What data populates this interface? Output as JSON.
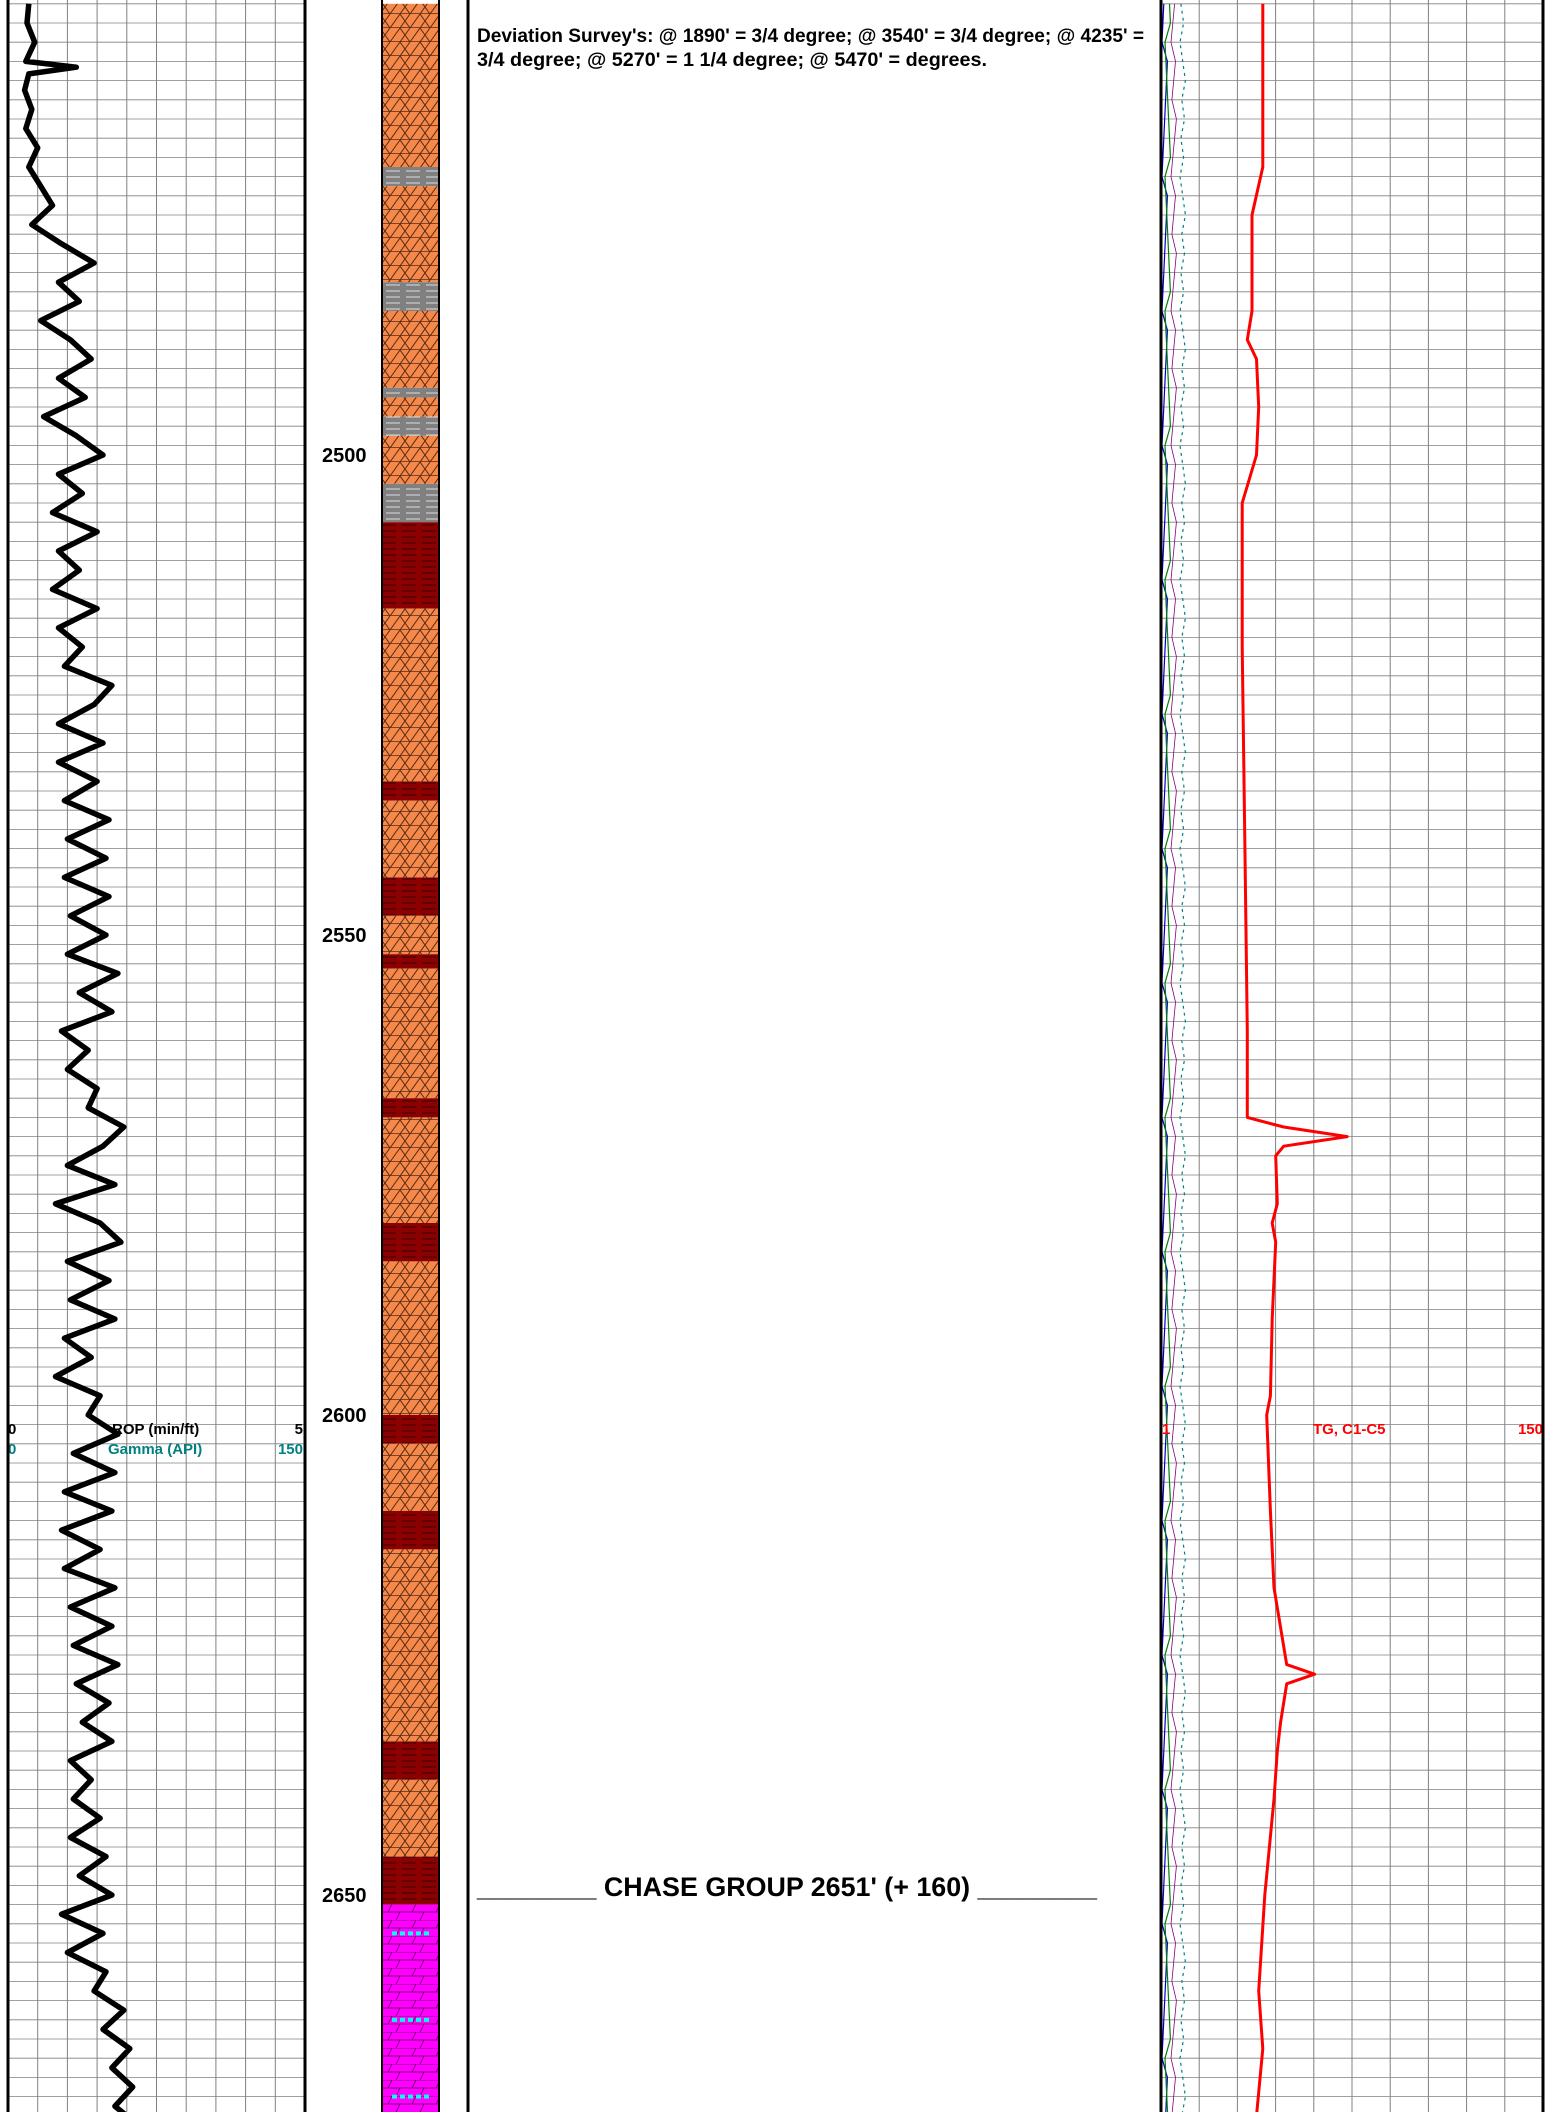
{
  "survey_note": {
    "line1": "Deviation Survey's: @ 1890' = 3/4 degree; @ 3540' = 3/4 degree; @ 4235' =",
    "line2": "3/4 degree; @ 5270' = 1 1/4 degree; @ 5470' =    degrees."
  },
  "formation_top": {
    "label": "________ CHASE GROUP 2651' (+ 160) ________",
    "depth": 2651
  },
  "depth_labels": [
    "2500",
    "2550",
    "2600",
    "2650"
  ],
  "left_track_header": {
    "rop_min": "0",
    "rop_label": "ROP (min/ft)",
    "rop_max": "5",
    "gamma_min": "0",
    "gamma_label": "Gamma (API)",
    "gamma_max": "150"
  },
  "right_track_header": {
    "gas_min": "1",
    "gas_label": "TG, C1-C5",
    "gas_max": "150"
  },
  "colors": {
    "rop": "#000000",
    "gamma": "#008080",
    "total_gas": "#ff0000",
    "limestone": "#ff00ff",
    "dolomite": "#f5894b",
    "red_shale": "#8b0000",
    "gray_shale": "#808080",
    "anhydrite_stringer": "#00ffff",
    "grid_minor": "#808080",
    "grid_major": "#000000"
  },
  "chart_data": {
    "type": "line",
    "depth_range": [
      2453,
      2673
    ],
    "depth_unit": "ft",
    "series": [
      {
        "name": "ROP (min/ft)",
        "scale": [
          0,
          5
        ],
        "points": [
          [
            2453,
            0.35
          ],
          [
            2455,
            0.32
          ],
          [
            2457,
            0.45
          ],
          [
            2459,
            0.3
          ],
          [
            2459.6,
            1.15
          ],
          [
            2460.3,
            0.35
          ],
          [
            2462,
            0.28
          ],
          [
            2464,
            0.4
          ],
          [
            2466,
            0.3
          ],
          [
            2468,
            0.5
          ],
          [
            2470,
            0.35
          ],
          [
            2472,
            0.55
          ],
          [
            2474,
            0.75
          ],
          [
            2476,
            0.4
          ],
          [
            2478,
            0.9
          ],
          [
            2480,
            1.45
          ],
          [
            2482,
            0.85
          ],
          [
            2484,
            1.2
          ],
          [
            2486,
            0.55
          ],
          [
            2488,
            1.05
          ],
          [
            2490,
            1.4
          ],
          [
            2492,
            0.85
          ],
          [
            2494,
            1.3
          ],
          [
            2496,
            0.6
          ],
          [
            2498,
            1.15
          ],
          [
            2500,
            1.6
          ],
          [
            2502,
            0.85
          ],
          [
            2504,
            1.25
          ],
          [
            2506,
            0.75
          ],
          [
            2508,
            1.5
          ],
          [
            2510,
            0.85
          ],
          [
            2512,
            1.2
          ],
          [
            2514,
            0.75
          ],
          [
            2516,
            1.5
          ],
          [
            2518,
            0.85
          ],
          [
            2520,
            1.25
          ],
          [
            2522,
            0.95
          ],
          [
            2524,
            1.75
          ],
          [
            2526,
            1.45
          ],
          [
            2528,
            0.85
          ],
          [
            2530,
            1.6
          ],
          [
            2532,
            0.85
          ],
          [
            2534,
            1.5
          ],
          [
            2536,
            0.95
          ],
          [
            2538,
            1.7
          ],
          [
            2540,
            1.0
          ],
          [
            2542,
            1.65
          ],
          [
            2544,
            0.95
          ],
          [
            2546,
            1.7
          ],
          [
            2548,
            1.05
          ],
          [
            2550,
            1.65
          ],
          [
            2552,
            1.0
          ],
          [
            2554,
            1.85
          ],
          [
            2556,
            1.2
          ],
          [
            2558,
            1.75
          ],
          [
            2560,
            0.9
          ],
          [
            2562,
            1.35
          ],
          [
            2564,
            1.0
          ],
          [
            2566,
            1.5
          ],
          [
            2568,
            1.35
          ],
          [
            2570,
            1.95
          ],
          [
            2572,
            1.6
          ],
          [
            2574,
            1.0
          ],
          [
            2576,
            1.8
          ],
          [
            2578,
            0.8
          ],
          [
            2580,
            1.55
          ],
          [
            2582,
            1.9
          ],
          [
            2584,
            1.0
          ],
          [
            2586,
            1.7
          ],
          [
            2588,
            1.05
          ],
          [
            2590,
            1.8
          ],
          [
            2592,
            0.95
          ],
          [
            2594,
            1.4
          ],
          [
            2596,
            0.8
          ],
          [
            2598,
            1.55
          ],
          [
            2600,
            1.35
          ],
          [
            2602,
            1.85
          ],
          [
            2604,
            1.1
          ],
          [
            2606,
            1.8
          ],
          [
            2608,
            0.95
          ],
          [
            2610,
            1.75
          ],
          [
            2612,
            0.9
          ],
          [
            2614,
            1.55
          ],
          [
            2616,
            0.95
          ],
          [
            2618,
            1.8
          ],
          [
            2620,
            1.05
          ],
          [
            2622,
            1.75
          ],
          [
            2624,
            1.1
          ],
          [
            2626,
            1.85
          ],
          [
            2628,
            1.15
          ],
          [
            2630,
            1.7
          ],
          [
            2632,
            1.25
          ],
          [
            2634,
            1.75
          ],
          [
            2636,
            1.05
          ],
          [
            2638,
            1.4
          ],
          [
            2640,
            1.1
          ],
          [
            2642,
            1.55
          ],
          [
            2644,
            1.05
          ],
          [
            2646,
            1.65
          ],
          [
            2648,
            1.2
          ],
          [
            2650,
            1.75
          ],
          [
            2652,
            0.9
          ],
          [
            2654,
            1.6
          ],
          [
            2656,
            1.0
          ],
          [
            2658,
            1.65
          ],
          [
            2660,
            1.45
          ],
          [
            2662,
            1.95
          ],
          [
            2664,
            1.6
          ],
          [
            2666,
            2.05
          ],
          [
            2668,
            1.75
          ],
          [
            2670,
            2.1
          ],
          [
            2672,
            1.8
          ],
          [
            2673,
            2.0
          ]
        ]
      },
      {
        "name": "Gamma (API)",
        "scale": [
          0,
          150
        ],
        "points": []
      },
      {
        "name": "TG, C1-C5",
        "scale": [
          1,
          150
        ],
        "points": [
          [
            2453,
            3.8
          ],
          [
            2470,
            3.8
          ],
          [
            2475,
            3.3
          ],
          [
            2485,
            3.3
          ],
          [
            2488,
            3.1
          ],
          [
            2490,
            3.5
          ],
          [
            2495,
            3.6
          ],
          [
            2500,
            3.5
          ],
          [
            2505,
            2.9
          ],
          [
            2520,
            2.9
          ],
          [
            2540,
            3.0
          ],
          [
            2560,
            3.1
          ],
          [
            2569,
            3.1
          ],
          [
            2570,
            5.0
          ],
          [
            2571,
            11.5
          ],
          [
            2572,
            5.0
          ],
          [
            2573,
            4.5
          ],
          [
            2578,
            4.6
          ],
          [
            2580,
            4.3
          ],
          [
            2582,
            4.5
          ],
          [
            2590,
            4.3
          ],
          [
            2598,
            4.2
          ],
          [
            2600,
            4.0
          ],
          [
            2610,
            4.2
          ],
          [
            2618,
            4.4
          ],
          [
            2626,
            5.2
          ],
          [
            2627,
            7.5
          ],
          [
            2628,
            5.2
          ],
          [
            2632,
            4.8
          ],
          [
            2635,
            4.6
          ],
          [
            2640,
            4.4
          ],
          [
            2650,
            3.9
          ],
          [
            2660,
            3.6
          ],
          [
            2666,
            3.8
          ],
          [
            2673,
            3.5
          ]
        ]
      }
    ],
    "lithology": [
      {
        "top": 2453,
        "base": 2470,
        "rock": "dolomite"
      },
      {
        "top": 2470,
        "base": 2472,
        "rock": "gray_shale"
      },
      {
        "top": 2472,
        "base": 2482,
        "rock": "dolomite"
      },
      {
        "top": 2482,
        "base": 2485,
        "rock": "gray_shale"
      },
      {
        "top": 2485,
        "base": 2493,
        "rock": "dolomite"
      },
      {
        "top": 2493,
        "base": 2494,
        "rock": "gray_shale"
      },
      {
        "top": 2494,
        "base": 2496,
        "rock": "dolomite"
      },
      {
        "top": 2496,
        "base": 2498,
        "rock": "gray_shale"
      },
      {
        "top": 2498,
        "base": 2503,
        "rock": "dolomite"
      },
      {
        "top": 2503,
        "base": 2507,
        "rock": "gray_shale"
      },
      {
        "top": 2507,
        "base": 2516,
        "rock": "red_shale"
      },
      {
        "top": 2516,
        "base": 2534,
        "rock": "dolomite"
      },
      {
        "top": 2534,
        "base": 2536,
        "rock": "red_shale"
      },
      {
        "top": 2536,
        "base": 2544,
        "rock": "dolomite"
      },
      {
        "top": 2544,
        "base": 2548,
        "rock": "red_shale"
      },
      {
        "top": 2548,
        "base": 2552,
        "rock": "dolomite"
      },
      {
        "top": 2552,
        "base": 2553.5,
        "rock": "red_shale"
      },
      {
        "top": 2553.5,
        "base": 2567,
        "rock": "dolomite"
      },
      {
        "top": 2567,
        "base": 2569,
        "rock": "red_shale"
      },
      {
        "top": 2569,
        "base": 2580,
        "rock": "dolomite"
      },
      {
        "top": 2580,
        "base": 2584,
        "rock": "red_shale"
      },
      {
        "top": 2584,
        "base": 2600,
        "rock": "dolomite"
      },
      {
        "top": 2600,
        "base": 2603,
        "rock": "red_shale"
      },
      {
        "top": 2603,
        "base": 2610,
        "rock": "dolomite"
      },
      {
        "top": 2610,
        "base": 2614,
        "rock": "red_shale"
      },
      {
        "top": 2614,
        "base": 2634,
        "rock": "dolomite"
      },
      {
        "top": 2634,
        "base": 2638,
        "rock": "red_shale"
      },
      {
        "top": 2638,
        "base": 2646,
        "rock": "dolomite"
      },
      {
        "top": 2646,
        "base": 2651,
        "rock": "red_shale"
      },
      {
        "top": 2651,
        "base": 2673,
        "rock": "limestone"
      }
    ]
  }
}
